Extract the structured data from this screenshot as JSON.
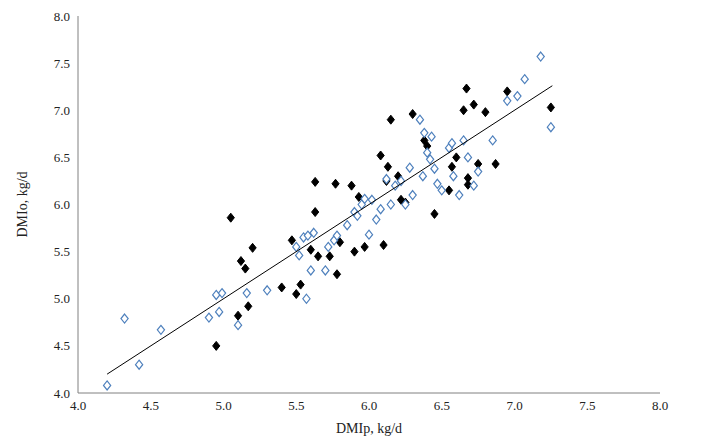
{
  "chart_data": {
    "type": "scatter",
    "x_label": "DMIp, kg/d",
    "y_label": "DMIo, kg/d",
    "xlim": [
      4,
      8
    ],
    "ylim": [
      4,
      8
    ],
    "xticks": [
      {
        "value": 4,
        "label": "4.0"
      },
      {
        "value": 4.5,
        "label": "4.5"
      },
      {
        "value": 5,
        "label": "5.0"
      },
      {
        "value": 5.5,
        "label": "5.5"
      },
      {
        "value": 6,
        "label": "6.0"
      },
      {
        "value": 6.5,
        "label": "6.5"
      },
      {
        "value": 7,
        "label": "7.0"
      },
      {
        "value": 7.5,
        "label": "7.5"
      },
      {
        "value": 8,
        "label": "8.0"
      }
    ],
    "yticks": [
      {
        "value": 4,
        "label": "4.0"
      },
      {
        "value": 4.5,
        "label": "4.5"
      },
      {
        "value": 5,
        "label": "5.0"
      },
      {
        "value": 5.5,
        "label": "5.5"
      },
      {
        "value": 6,
        "label": "6.0"
      },
      {
        "value": 6.5,
        "label": "6.5"
      },
      {
        "value": 7,
        "label": "7.0"
      },
      {
        "value": 7.5,
        "label": "7.5"
      },
      {
        "value": 8,
        "label": "8.0"
      }
    ],
    "grid": false,
    "series": [
      {
        "type": "scatter",
        "color": "#000000",
        "marker": "diamond",
        "x": [
          4.95,
          5.05,
          5.1,
          5.12,
          5.15,
          5.17,
          5.2,
          5.4,
          5.47,
          5.5,
          5.53,
          5.6,
          5.63,
          5.63,
          5.65,
          5.73,
          5.77,
          5.78,
          5.8,
          5.88,
          5.9,
          5.93,
          5.97,
          6.08,
          6.1,
          6.12,
          6.13,
          6.15,
          6.2,
          6.22,
          6.25,
          6.3,
          6.38,
          6.4,
          6.45,
          6.55,
          6.57,
          6.6,
          6.65,
          6.67,
          6.68,
          6.68,
          6.72,
          6.75,
          6.8,
          6.87,
          6.95,
          7.25
        ],
        "values": [
          4.5,
          5.86,
          4.82,
          5.4,
          5.32,
          4.92,
          5.54,
          5.12,
          5.62,
          5.05,
          5.15,
          5.52,
          6.24,
          5.92,
          5.45,
          5.45,
          6.22,
          5.26,
          5.6,
          6.2,
          5.5,
          6.08,
          5.55,
          6.52,
          5.57,
          6.25,
          6.4,
          6.9,
          6.3,
          6.05,
          6.02,
          6.96,
          6.68,
          6.62,
          5.9,
          6.15,
          6.4,
          6.5,
          7.0,
          7.23,
          6.28,
          6.21,
          7.06,
          6.43,
          6.98,
          6.43,
          7.2,
          7.03
        ]
      },
      {
        "type": "scatter",
        "color": "#4f81bd",
        "marker": "diamond_open",
        "x": [
          4.2,
          4.32,
          4.42,
          4.57,
          4.9,
          4.95,
          4.97,
          4.99,
          5.1,
          5.16,
          5.3,
          5.5,
          5.52,
          5.55,
          5.57,
          5.58,
          5.6,
          5.62,
          5.7,
          5.72,
          5.76,
          5.78,
          5.85,
          5.9,
          5.92,
          5.95,
          5.97,
          6.0,
          6.02,
          6.05,
          6.08,
          6.12,
          6.15,
          6.18,
          6.22,
          6.25,
          6.28,
          6.3,
          6.35,
          6.37,
          6.38,
          6.4,
          6.42,
          6.43,
          6.45,
          6.47,
          6.5,
          6.55,
          6.57,
          6.58,
          6.62,
          6.65,
          6.68,
          6.72,
          6.75,
          6.85,
          6.95,
          7.02,
          7.07,
          7.18,
          7.25
        ],
        "values": [
          4.08,
          4.79,
          4.3,
          4.67,
          4.8,
          5.04,
          4.86,
          5.06,
          4.72,
          5.06,
          5.09,
          5.55,
          5.46,
          5.65,
          5.0,
          5.67,
          5.3,
          5.7,
          5.3,
          5.55,
          5.62,
          5.67,
          5.78,
          5.92,
          5.88,
          6.0,
          6.06,
          5.68,
          6.05,
          5.84,
          5.95,
          6.27,
          6.0,
          6.2,
          6.25,
          6.0,
          6.39,
          6.1,
          6.9,
          6.3,
          6.76,
          6.55,
          6.48,
          6.72,
          6.38,
          6.22,
          6.15,
          6.6,
          6.65,
          6.3,
          6.1,
          6.68,
          6.5,
          6.2,
          6.35,
          6.68,
          7.1,
          7.15,
          7.33,
          7.57,
          6.82
        ]
      },
      {
        "type": "line",
        "color": "#000000",
        "x": [
          4.2,
          7.26
        ],
        "values": [
          4.2,
          7.26
        ]
      }
    ]
  }
}
